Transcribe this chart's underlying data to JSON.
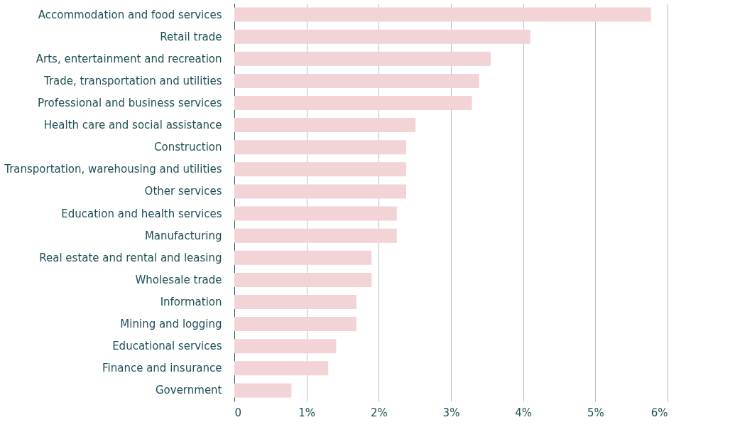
{
  "chart_data": {
    "type": "bar",
    "orientation": "horizontal",
    "categories": [
      "Accommodation and food services",
      "Retail trade",
      "Arts, entertainment and recreation",
      "Trade, transportation and utilities",
      "Professional and business services",
      "Health care and social assistance",
      "Construction",
      "Transportation, warehousing and utilities",
      "Other services",
      "Education and health services",
      "Manufacturing",
      "Real estate and rental and leasing",
      "Wholesale trade",
      "Information",
      "Mining and logging",
      "Educational services",
      "Finance and insurance",
      "Government"
    ],
    "values": [
      5.77,
      4.1,
      3.55,
      3.39,
      3.29,
      2.51,
      2.38,
      2.38,
      2.38,
      2.25,
      2.25,
      1.9,
      1.9,
      1.69,
      1.69,
      1.41,
      1.3,
      0.79
    ],
    "color": "#f2d3d6",
    "xlim": [
      0,
      6
    ],
    "xticks": [
      0,
      {
        "value": 1,
        "label": "1%"
      },
      {
        "value": 2,
        "label": "2%"
      },
      {
        "value": 3,
        "label": "3%"
      },
      {
        "value": 4,
        "label": "4%"
      },
      {
        "value": 5,
        "label": "5%"
      },
      {
        "value": 6,
        "label": "6%"
      }
    ],
    "grid": "x"
  }
}
